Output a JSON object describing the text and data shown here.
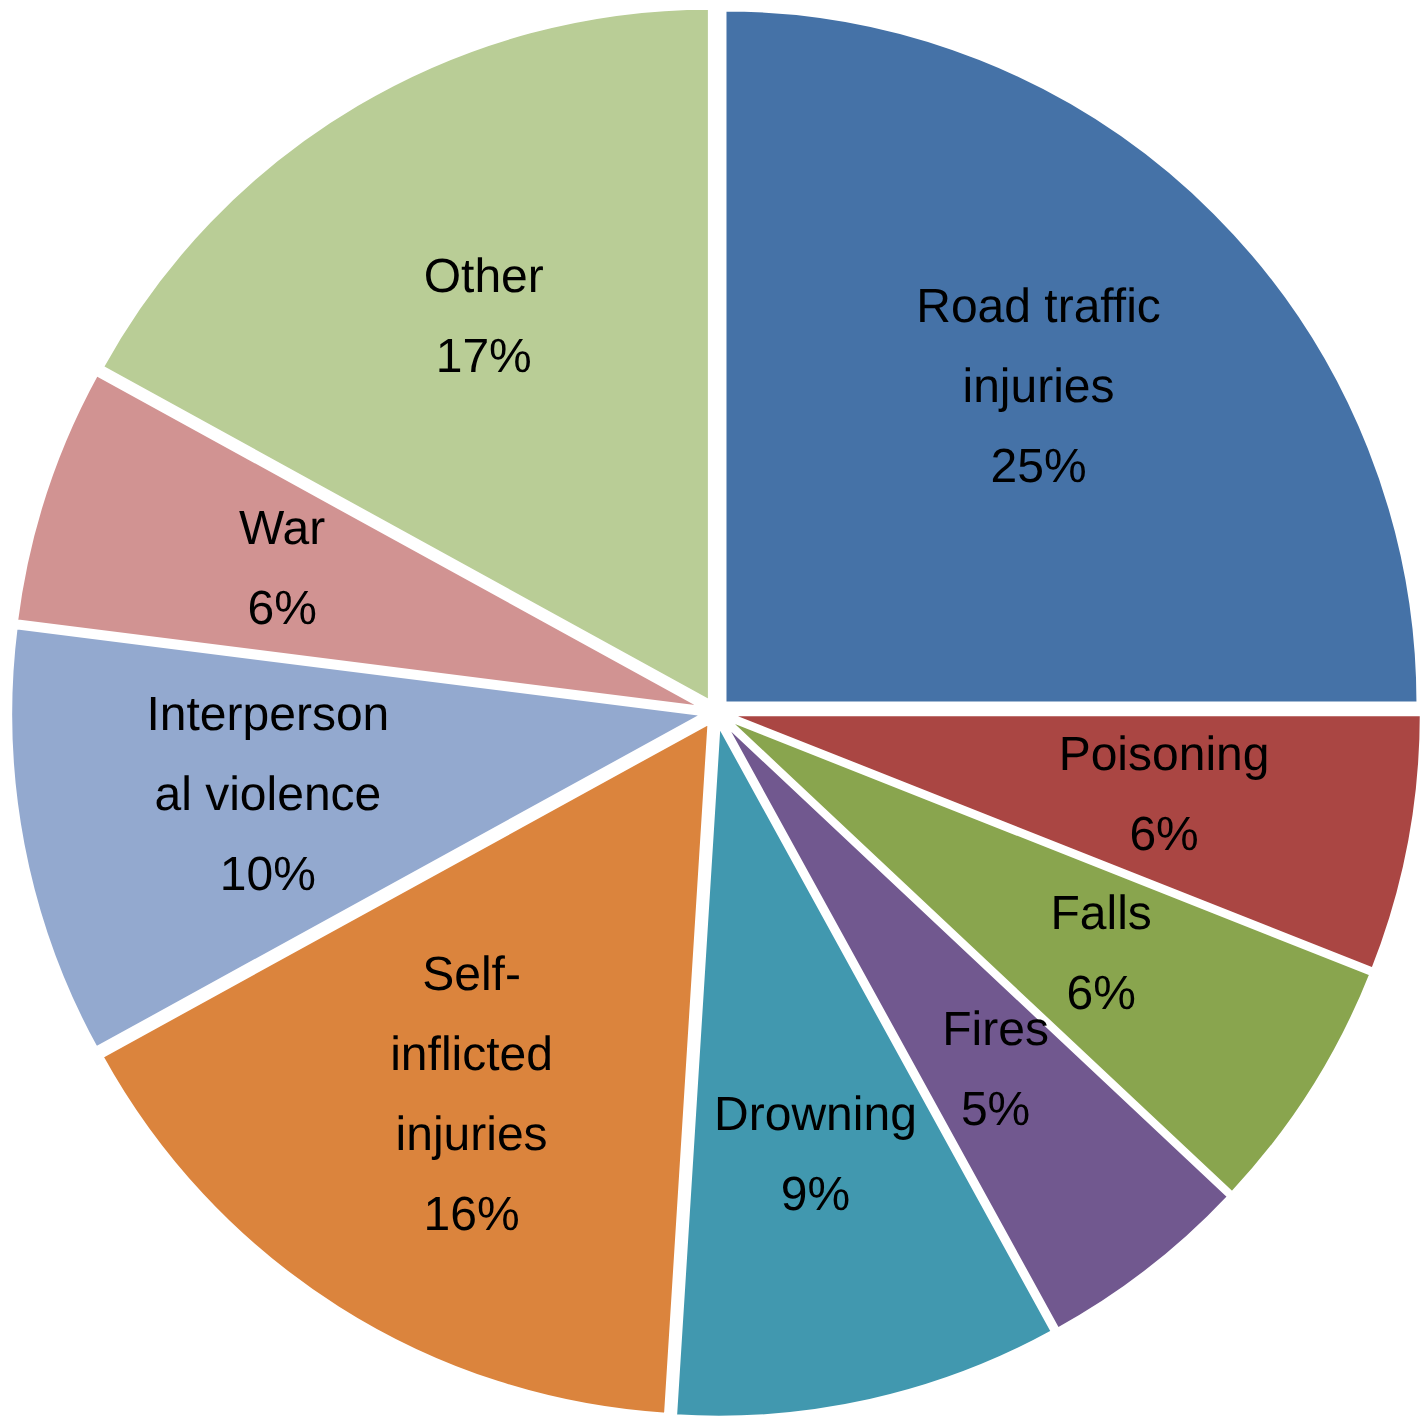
{
  "chart_data": {
    "type": "pie",
    "categories": [
      "Road traffic injuries",
      "Poisoning",
      "Falls",
      "Fires",
      "Drowning",
      "Self-inflicted injuries",
      "Interpersonal violence",
      "War",
      "Other"
    ],
    "values": [
      25,
      6,
      6,
      5,
      9,
      16,
      10,
      6,
      17
    ],
    "colors": [
      "#4572a7",
      "#aa4643",
      "#89a54e",
      "#71588f",
      "#4198af",
      "#db843d",
      "#93a9cf",
      "#d19392",
      "#b9cd96"
    ],
    "value_labels": [
      "25%",
      "6%",
      "6%",
      "5%",
      "9%",
      "16%",
      "10%",
      "6%",
      "17%"
    ]
  }
}
